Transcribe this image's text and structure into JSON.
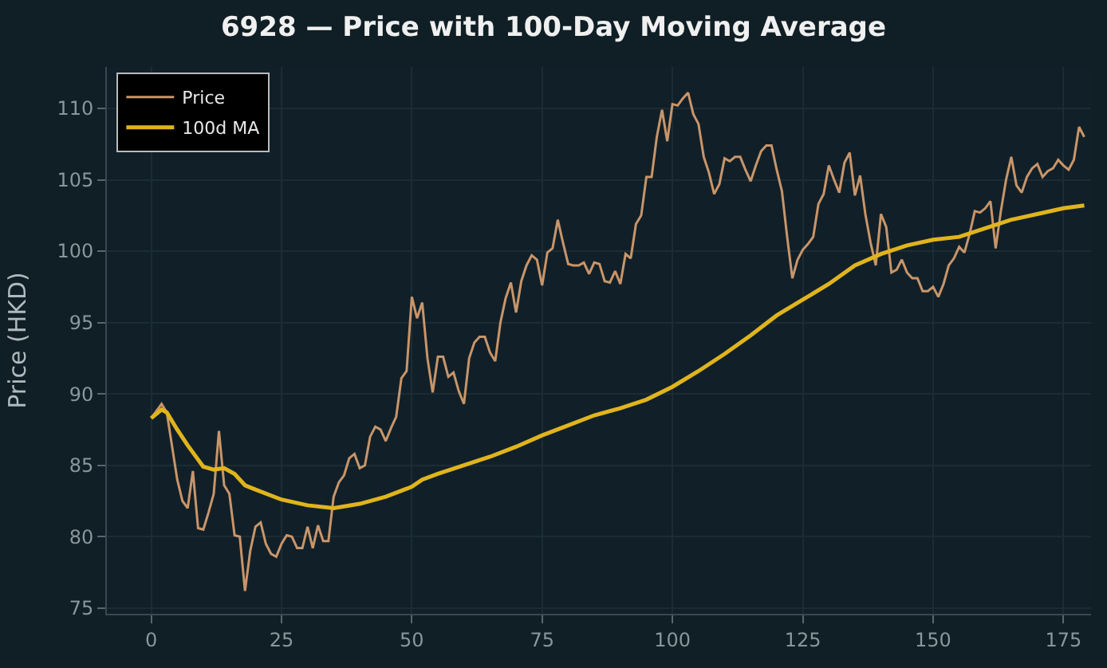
{
  "chart_data": {
    "type": "line",
    "title": "6928 — Price with 100-Day Moving Average",
    "ylabel": "Price (HKD)",
    "xlim": [
      -8.5,
      180.3
    ],
    "ylim": [
      74.6,
      112.9
    ],
    "xticks": [
      0,
      25,
      50,
      75,
      100,
      125,
      150,
      175
    ],
    "yticks": [
      75,
      80,
      85,
      90,
      95,
      100,
      105,
      110
    ],
    "grid": true,
    "legend": "top left",
    "marker": "none",
    "line_style": "solid",
    "series": [
      {
        "name": "Price",
        "color": "#c8956a",
        "x": [
          0,
          2,
          3,
          5,
          6,
          7,
          8,
          9,
          10,
          11,
          12,
          13,
          14,
          15,
          16,
          17,
          18,
          19,
          20,
          21,
          22,
          23,
          24,
          25,
          26,
          27,
          28,
          29,
          30,
          31,
          32,
          33,
          34,
          35,
          36,
          37,
          38,
          39,
          40,
          41,
          42,
          43,
          44,
          45,
          46,
          47,
          48,
          49,
          50,
          51,
          52,
          53,
          54,
          55,
          56,
          57,
          58,
          59,
          60,
          61,
          62,
          63,
          64,
          65,
          66,
          67,
          68,
          69,
          70,
          71,
          72,
          73,
          74,
          75,
          76,
          77,
          78,
          79,
          80,
          81,
          82,
          83,
          84,
          85,
          86,
          87,
          88,
          89,
          90,
          91,
          92,
          93,
          94,
          95,
          96,
          97,
          98,
          99,
          100,
          101,
          102,
          103,
          104,
          105,
          106,
          107,
          108,
          109,
          110,
          111,
          112,
          113,
          114,
          115,
          116,
          117,
          118,
          119,
          120,
          121,
          122,
          123,
          124,
          125,
          126,
          127,
          128,
          129,
          130,
          131,
          132,
          133,
          134,
          135,
          136,
          137,
          138,
          139,
          140,
          141,
          142,
          143,
          144,
          145,
          146,
          147,
          148,
          149,
          150,
          151,
          152,
          153,
          154,
          155,
          156,
          157,
          158,
          159,
          160,
          161,
          162,
          163,
          164,
          165,
          166,
          167,
          168,
          169,
          170,
          171,
          172,
          173,
          174,
          175,
          176,
          177,
          178,
          179
        ],
        "values": [
          88.3,
          89.3,
          88.7,
          84,
          82.5,
          82,
          84.6,
          80.6,
          80.5,
          81.7,
          83,
          87.4,
          83.6,
          83,
          80.1,
          80,
          76.2,
          79,
          80.7,
          81,
          79.5,
          78.8,
          78.6,
          79.5,
          80.1,
          80,
          79.2,
          79.2,
          80.7,
          79.2,
          80.8,
          79.7,
          79.7,
          82.8,
          83.8,
          84.3,
          85.5,
          85.8,
          84.8,
          85,
          87,
          87.7,
          87.5,
          86.7,
          87.6,
          88.4,
          91.1,
          91.6,
          96.8,
          95.3,
          96.4,
          92.5,
          90.1,
          92.6,
          92.6,
          91.2,
          91.5,
          90.2,
          89.3,
          92.5,
          93.6,
          94,
          94,
          92.9,
          92.3,
          95,
          96.7,
          97.8,
          95.7,
          97.9,
          99,
          99.7,
          99.4,
          97.6,
          99.9,
          100.2,
          102.2,
          100.6,
          99.1,
          99,
          99,
          99.2,
          98.4,
          99.2,
          99.1,
          97.9,
          97.8,
          98.6,
          97.7,
          99.8,
          99.5,
          101.9,
          102.5,
          105.2,
          105.2,
          108,
          109.9,
          107.7,
          110.3,
          110.2,
          110.7,
          111.1,
          109.6,
          108.9,
          106.6,
          105.5,
          104,
          104.7,
          106.5,
          106.3,
          106.6,
          106.6,
          105.7,
          104.9,
          106,
          107,
          107.4,
          107.4,
          105.7,
          104.2,
          101,
          98.1,
          99.4,
          100.1,
          100.5,
          101,
          103.3,
          104,
          106,
          105,
          104.1,
          106.2,
          106.9,
          103.9,
          105.3,
          102.6,
          100.6,
          99,
          102.6,
          101.7,
          98.5,
          98.7,
          99.4,
          98.5,
          98.1,
          98.1,
          97.2,
          97.2,
          97.5,
          96.8,
          97.7,
          99,
          99.5,
          100.3,
          99.9,
          101.2,
          102.8,
          102.7,
          103,
          103.5,
          100.2,
          102.8,
          105,
          106.6,
          104.6,
          104.1,
          105.2,
          105.8,
          106.1,
          105.2,
          105.6,
          105.8,
          106.4,
          106,
          105.7,
          106.4,
          108.7,
          108
        ]
      },
      {
        "name": "100d MA",
        "color": "#e0b41c",
        "x": [
          0,
          2,
          3,
          5,
          7,
          10,
          12,
          14,
          16,
          18,
          20,
          25,
          30,
          35,
          40,
          45,
          50,
          52,
          55,
          60,
          65,
          70,
          75,
          80,
          85,
          90,
          95,
          100,
          105,
          110,
          115,
          120,
          125,
          130,
          135,
          140,
          145,
          150,
          155,
          160,
          165,
          170,
          175,
          179
        ],
        "values": [
          88.3,
          88.9,
          88.7,
          87.5,
          86.4,
          84.9,
          84.7,
          84.8,
          84.4,
          83.6,
          83.3,
          82.6,
          82.2,
          82.0,
          82.3,
          82.8,
          83.5,
          84.0,
          84.4,
          85.0,
          85.6,
          86.3,
          87.1,
          87.8,
          88.5,
          89.0,
          89.6,
          90.5,
          91.6,
          92.8,
          94.1,
          95.5,
          96.6,
          97.7,
          99.0,
          99.8,
          100.4,
          100.8,
          101.0,
          101.6,
          102.2,
          102.6,
          103.0,
          103.2
        ]
      }
    ]
  }
}
